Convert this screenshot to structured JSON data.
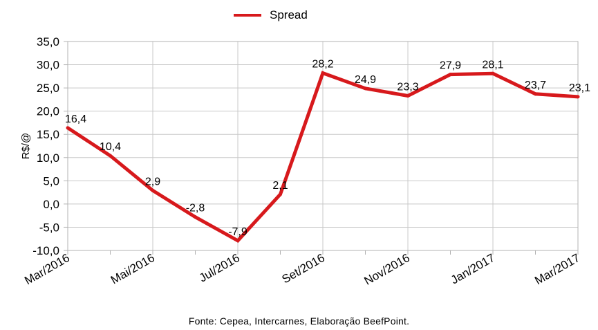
{
  "chart_data": {
    "type": "line",
    "title": "",
    "ylabel": "R$/@",
    "xlabel": "",
    "ylim": [
      -10,
      35
    ],
    "yticks": [
      "35,0",
      "30,0",
      "25,0",
      "20,0",
      "15,0",
      "10,0",
      "5,0",
      "0,0",
      "-5,0",
      "-10,0"
    ],
    "x_tick_labels": [
      "Mar/2016",
      "Mai/2016",
      "Jul/2016",
      "Set/2016",
      "Nov/2016",
      "Jan/2017",
      "Mar/2017"
    ],
    "categories": [
      "Mar/2016",
      "Abr/2016",
      "Mai/2016",
      "Jun/2016",
      "Jul/2016",
      "Ago/2016",
      "Set/2016",
      "Out/2016",
      "Nov/2016",
      "Dez/2016",
      "Jan/2017",
      "Fev/2017",
      "Mar/2017"
    ],
    "series": [
      {
        "name": "Spread",
        "color": "#d7191c",
        "values": [
          16.4,
          10.4,
          2.9,
          -2.8,
          -7.9,
          2.1,
          28.2,
          24.9,
          23.3,
          27.9,
          28.1,
          23.7,
          23.1
        ],
        "labels": [
          "16,4",
          "10,4",
          "2,9",
          "-2,8",
          "-7,9",
          "2,1",
          "28,2",
          "24,9",
          "23,3",
          "27,9",
          "28,1",
          "23,7",
          "23,1"
        ]
      }
    ],
    "grid": true,
    "legend_position": "top-center"
  },
  "legend": {
    "label": "Spread",
    "color": "#d7191c"
  },
  "footer": {
    "source": "Fonte: Cepea, Intercarnes, Elaboração BeefPoint."
  }
}
